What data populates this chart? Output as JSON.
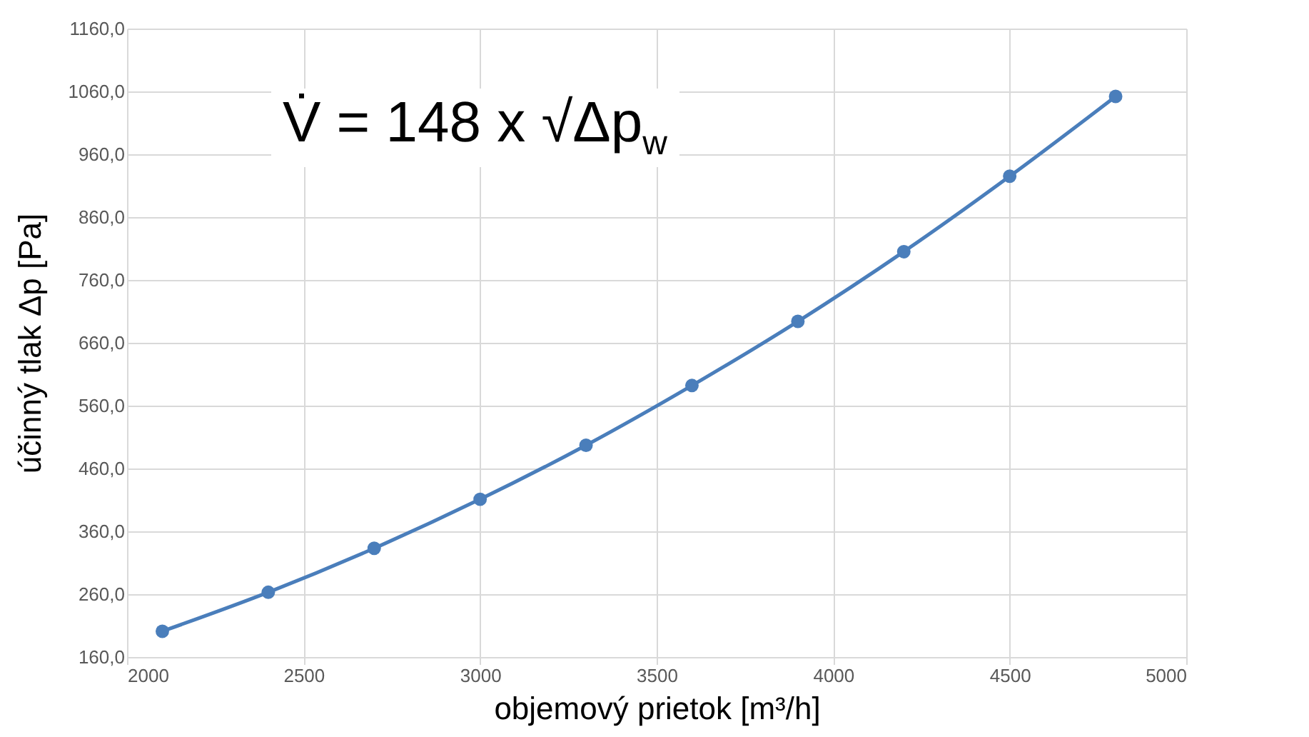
{
  "chart_data": {
    "type": "line",
    "xlabel": "objemový prietok  [m³/h]",
    "ylabel": "účinný tlak  Δp [Pa]",
    "annotations": [
      "V̇ = 148 x √Δp$_{w}$"
    ],
    "x": [
      2100,
      2400,
      2700,
      3000,
      3300,
      3600,
      3900,
      4200,
      4500,
      4800
    ],
    "series": [
      {
        "color": "#4a7ebb",
        "values": [
          201,
          263,
          333,
          411,
          497,
          592,
          694,
          805,
          925,
          1052
        ]
      }
    ],
    "xlim": [
      2000,
      5000
    ],
    "xticks": [
      2000,
      2500,
      3000,
      3500,
      4000,
      4500,
      5000
    ],
    "ylim": [
      160,
      1160
    ],
    "yticks": [
      {
        "value": 160,
        "label": "160,0"
      },
      {
        "value": 260,
        "label": "260,0"
      },
      {
        "value": 360,
        "label": "360,0"
      },
      {
        "value": 460,
        "label": "460,0"
      },
      {
        "value": 560,
        "label": "560,0"
      },
      {
        "value": 660,
        "label": "660,0"
      },
      {
        "value": 760,
        "label": "760,0"
      },
      {
        "value": 860,
        "label": "860,0"
      },
      {
        "value": 960,
        "label": "960,0"
      },
      {
        "value": 1060,
        "label": "1060,0"
      },
      {
        "value": 1160,
        "label": "1160,0"
      }
    ],
    "grid": true,
    "marker": "circle",
    "line_style": "solid",
    "legend": false
  }
}
